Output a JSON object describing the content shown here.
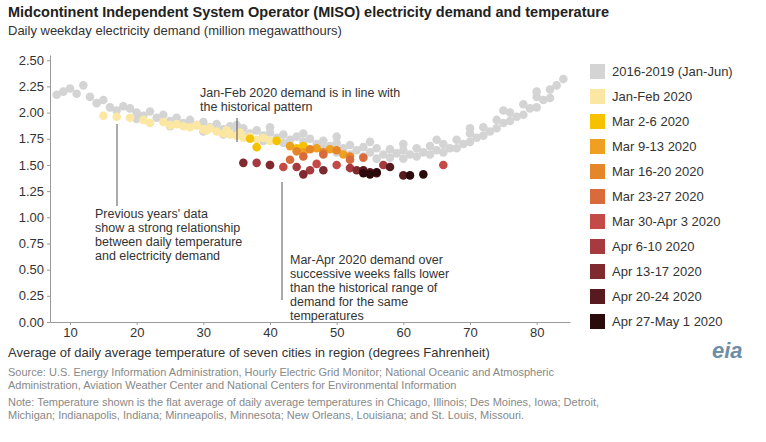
{
  "chart_data": {
    "type": "scatter",
    "title": "Midcontinent Independent System Operator (MISO) electricity demand and temperature",
    "subtitle": "Daily weekday electricity demand (million megawatthours)",
    "x_label": "Average of daily average temperature of seven cities in region (degrees Fahrenheit)",
    "xlim": [
      7,
      85
    ],
    "xticks": [
      10,
      20,
      30,
      40,
      50,
      60,
      70,
      80
    ],
    "ylim": [
      0,
      2.55
    ],
    "yticks": [
      {
        "value": 0,
        "label": "0.00"
      },
      {
        "value": 0.25,
        "label": "0.25"
      },
      {
        "value": 0.5,
        "label": "0.50"
      },
      {
        "value": 0.75,
        "label": "0.75"
      },
      {
        "value": 1,
        "label": "1.00"
      },
      {
        "value": 1.25,
        "label": "1.25"
      },
      {
        "value": 1.5,
        "label": "1.50"
      },
      {
        "value": 1.75,
        "label": "1.75"
      },
      {
        "value": 2,
        "label": "2.00"
      },
      {
        "value": 2.25,
        "label": "2.25"
      },
      {
        "value": 2.5,
        "label": "2.50"
      }
    ],
    "grid": false,
    "legend": "right",
    "marker": "circle",
    "series": [
      {
        "name": "2016-2019 (Jan-Jun)",
        "color": "#d4d4d4",
        "x": [
          8,
          9,
          10,
          11,
          12,
          13,
          14,
          15,
          16,
          17,
          18,
          19,
          20,
          21,
          22,
          23,
          24,
          25,
          26,
          27,
          28,
          29,
          30,
          31,
          32,
          33,
          34,
          35,
          36,
          37,
          38,
          39,
          40,
          41,
          42,
          43,
          44,
          45,
          46,
          47,
          48,
          49,
          50,
          51,
          52,
          53,
          54,
          55,
          56,
          57,
          58,
          59,
          60,
          61,
          62,
          63,
          64,
          65,
          66,
          67,
          68,
          69,
          70,
          71,
          72,
          73,
          74,
          75,
          76,
          77,
          78,
          79,
          80,
          81,
          82,
          83,
          84,
          20,
          25,
          30,
          33,
          36,
          39,
          42,
          45,
          48,
          50,
          52,
          54,
          56,
          58,
          60,
          62,
          64,
          66,
          68,
          70,
          72,
          74,
          76,
          78,
          80,
          82,
          35,
          40,
          45,
          50,
          55,
          60,
          65,
          70,
          75,
          80
        ],
        "values": [
          2.17,
          2.2,
          2.23,
          2.18,
          2.26,
          2.15,
          2.09,
          2.12,
          2.05,
          2.02,
          2.06,
          2.04,
          2.0,
          1.97,
          2.01,
          1.95,
          1.98,
          1.92,
          1.95,
          1.9,
          1.93,
          1.88,
          1.91,
          1.86,
          1.89,
          1.84,
          1.87,
          1.82,
          1.85,
          1.8,
          1.83,
          1.78,
          1.81,
          1.76,
          1.79,
          1.74,
          1.77,
          1.72,
          1.75,
          1.7,
          1.73,
          1.68,
          1.71,
          1.66,
          1.69,
          1.64,
          1.67,
          1.62,
          1.66,
          1.6,
          1.65,
          1.61,
          1.64,
          1.6,
          1.66,
          1.62,
          1.68,
          1.64,
          1.7,
          1.66,
          1.74,
          1.7,
          1.8,
          1.76,
          1.86,
          1.82,
          1.93,
          1.9,
          2.0,
          1.96,
          2.08,
          2.04,
          2.15,
          2.12,
          2.22,
          2.26,
          2.32,
          1.94,
          1.87,
          1.82,
          1.79,
          1.77,
          1.73,
          1.71,
          1.67,
          1.66,
          1.62,
          1.6,
          1.58,
          1.56,
          1.57,
          1.56,
          1.58,
          1.6,
          1.62,
          1.66,
          1.72,
          1.78,
          1.85,
          1.92,
          1.98,
          2.05,
          2.14,
          1.88,
          1.86,
          1.8,
          1.77,
          1.72,
          1.7,
          1.74,
          1.85,
          2.02,
          2.2
        ]
      },
      {
        "name": "Jan-Feb 2020",
        "color": "#fbe7a1",
        "x": [
          15,
          17,
          19,
          21,
          22,
          24,
          25,
          26,
          27,
          28,
          29,
          30,
          30.5,
          31,
          32,
          33,
          33.5,
          34,
          35,
          35.5,
          36,
          37,
          38,
          39,
          40
        ],
        "values": [
          1.97,
          1.96,
          1.95,
          1.93,
          1.9,
          1.91,
          1.88,
          1.89,
          1.87,
          1.86,
          1.88,
          1.84,
          1.83,
          1.85,
          1.82,
          1.8,
          1.83,
          1.79,
          1.78,
          1.81,
          1.76,
          1.77,
          1.74,
          1.76,
          1.73
        ]
      },
      {
        "name": "Mar 2-6 2020",
        "color": "#f6c200",
        "x": [
          37,
          38,
          41,
          44,
          45
        ],
        "values": [
          1.75,
          1.67,
          1.73,
          1.66,
          1.68
        ]
      },
      {
        "name": "Mar 9-13 2020",
        "color": "#eea021",
        "x": [
          43,
          45,
          47,
          49,
          51
        ],
        "values": [
          1.68,
          1.62,
          1.66,
          1.65,
          1.6
        ]
      },
      {
        "name": "Mar 16-20 2020",
        "color": "#e5862a",
        "x": [
          44,
          46,
          48,
          50,
          52
        ],
        "values": [
          1.63,
          1.65,
          1.62,
          1.64,
          1.58
        ]
      },
      {
        "name": "Mar 23-27 2020",
        "color": "#d86a3b",
        "x": [
          43,
          45,
          48,
          52,
          54
        ],
        "values": [
          1.55,
          1.58,
          1.6,
          1.55,
          1.57
        ]
      },
      {
        "name": "Mar 30-Apr 3 2020",
        "color": "#c44a47",
        "x": [
          40,
          42,
          47,
          50,
          66
        ],
        "values": [
          1.5,
          1.48,
          1.51,
          1.5,
          1.5
        ]
      },
      {
        "name": "Apr 6-10 2020",
        "color": "#a53b3f",
        "x": [
          38,
          44,
          46,
          52,
          57
        ],
        "values": [
          1.52,
          1.48,
          1.45,
          1.47,
          1.5
        ]
      },
      {
        "name": "Apr 13-17 2020",
        "color": "#7f2a2f",
        "x": [
          36,
          40,
          45,
          48,
          53
        ],
        "values": [
          1.52,
          1.5,
          1.41,
          1.45,
          1.45
        ]
      },
      {
        "name": "Apr 20-24 2020",
        "color": "#561a1f",
        "x": [
          54,
          55,
          56,
          58,
          60
        ],
        "values": [
          1.45,
          1.43,
          1.42,
          1.48,
          1.4
        ]
      },
      {
        "name": "Apr 27-May 1 2020",
        "color": "#2b0a0c",
        "x": [
          54,
          55,
          56,
          61,
          63
        ],
        "values": [
          1.42,
          1.41,
          1.43,
          1.4,
          1.41
        ]
      }
    ],
    "annotations": [
      [
        "Jan-Feb 2020 demand is in line with",
        "the historical pattern"
      ],
      [
        "Previous years' data",
        "show a strong relationship",
        "between daily temperature",
        "and electricity demand"
      ],
      [
        "Mar-Apr 2020 demand over",
        "successive weeks falls lower",
        "than the historical range of",
        "demand for the same",
        "temperatures"
      ]
    ],
    "source": [
      "Source: U.S. Energy Information Administration, Hourly Electric Grid Monitor; National Oceanic and Atmospheric",
      "Administration, Aviation Weather Center and National Centers for Environmental Information"
    ],
    "note": [
      "Note: Temperature shown is the flat average of daily average temperatures in Chicago, Illinois; Des Moines, Iowa; Detroit,",
      "Michigan; Indianapolis, Indiana; Minneapolis, Minnesota; New Orleans, Louisiana; and St. Louis, Missouri."
    ],
    "logo": "eia"
  }
}
